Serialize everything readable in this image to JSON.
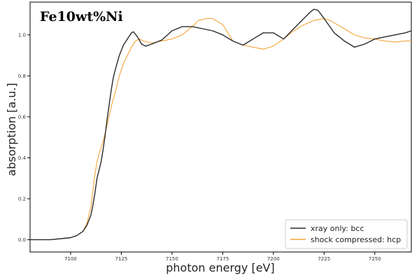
{
  "chart_data": {
    "type": "line",
    "title": "Fe10wt%Ni",
    "xlabel": "photon energy [eV]",
    "ylabel": "absorption [a.u.]",
    "xlim": [
      7080,
      7268
    ],
    "ylim": [
      -0.06,
      1.16
    ],
    "xticks": [
      7100,
      7125,
      7150,
      7175,
      7200,
      7225,
      7250
    ],
    "yticks": [
      0.0,
      0.2,
      0.4,
      0.6,
      0.8,
      1.0
    ],
    "grid": false,
    "legend_position": "bottom-right",
    "series": [
      {
        "name": "xray only: bcc",
        "color": "#2b2b2b",
        "x": [
          7080,
          7090,
          7095,
          7100,
          7103,
          7106,
          7108,
          7110,
          7111,
          7112,
          7113,
          7114,
          7115,
          7116,
          7117,
          7118,
          7119,
          7120,
          7121,
          7122,
          7124,
          7126,
          7128,
          7130,
          7131,
          7133,
          7135,
          7137,
          7140,
          7145,
          7150,
          7155,
          7160,
          7165,
          7170,
          7175,
          7180,
          7185,
          7190,
          7195,
          7200,
          7205,
          7210,
          7215,
          7218,
          7220,
          7222,
          7225,
          7230,
          7235,
          7240,
          7245,
          7250,
          7255,
          7260,
          7265,
          7268
        ],
        "y": [
          0.0,
          0.0,
          0.005,
          0.01,
          0.02,
          0.04,
          0.07,
          0.12,
          0.17,
          0.23,
          0.3,
          0.34,
          0.38,
          0.44,
          0.51,
          0.59,
          0.66,
          0.73,
          0.79,
          0.83,
          0.9,
          0.95,
          0.98,
          1.01,
          1.015,
          0.99,
          0.955,
          0.945,
          0.955,
          0.975,
          1.02,
          1.04,
          1.04,
          1.03,
          1.02,
          1.0,
          0.97,
          0.95,
          0.98,
          1.01,
          1.01,
          0.98,
          1.03,
          1.08,
          1.11,
          1.125,
          1.12,
          1.08,
          1.01,
          0.97,
          0.94,
          0.955,
          0.98,
          0.99,
          1.0,
          1.01,
          1.02
        ]
      },
      {
        "name": "shock compressed: hcp",
        "color": "#f5a43a",
        "x": [
          7080,
          7090,
          7095,
          7100,
          7103,
          7106,
          7108,
          7110,
          7111,
          7112,
          7113,
          7114,
          7115,
          7116,
          7118,
          7120,
          7122,
          7124,
          7126,
          7128,
          7130,
          7132,
          7134,
          7136,
          7140,
          7145,
          7150,
          7155,
          7160,
          7163,
          7167,
          7170,
          7175,
          7180,
          7185,
          7190,
          7195,
          7200,
          7205,
          7210,
          7215,
          7220,
          7225,
          7228,
          7235,
          7240,
          7245,
          7250,
          7255,
          7260,
          7265,
          7268
        ],
        "y": [
          0.0,
          0.0,
          0.005,
          0.01,
          0.02,
          0.04,
          0.08,
          0.16,
          0.24,
          0.32,
          0.38,
          0.42,
          0.45,
          0.48,
          0.56,
          0.65,
          0.72,
          0.8,
          0.86,
          0.9,
          0.94,
          0.97,
          0.98,
          0.97,
          0.96,
          0.97,
          0.98,
          1.0,
          1.04,
          1.07,
          1.08,
          1.08,
          1.05,
          0.97,
          0.95,
          0.94,
          0.93,
          0.945,
          0.98,
          1.02,
          1.05,
          1.07,
          1.08,
          1.07,
          1.03,
          1.0,
          0.985,
          0.98,
          0.97,
          0.965,
          0.97,
          0.97
        ]
      }
    ]
  }
}
